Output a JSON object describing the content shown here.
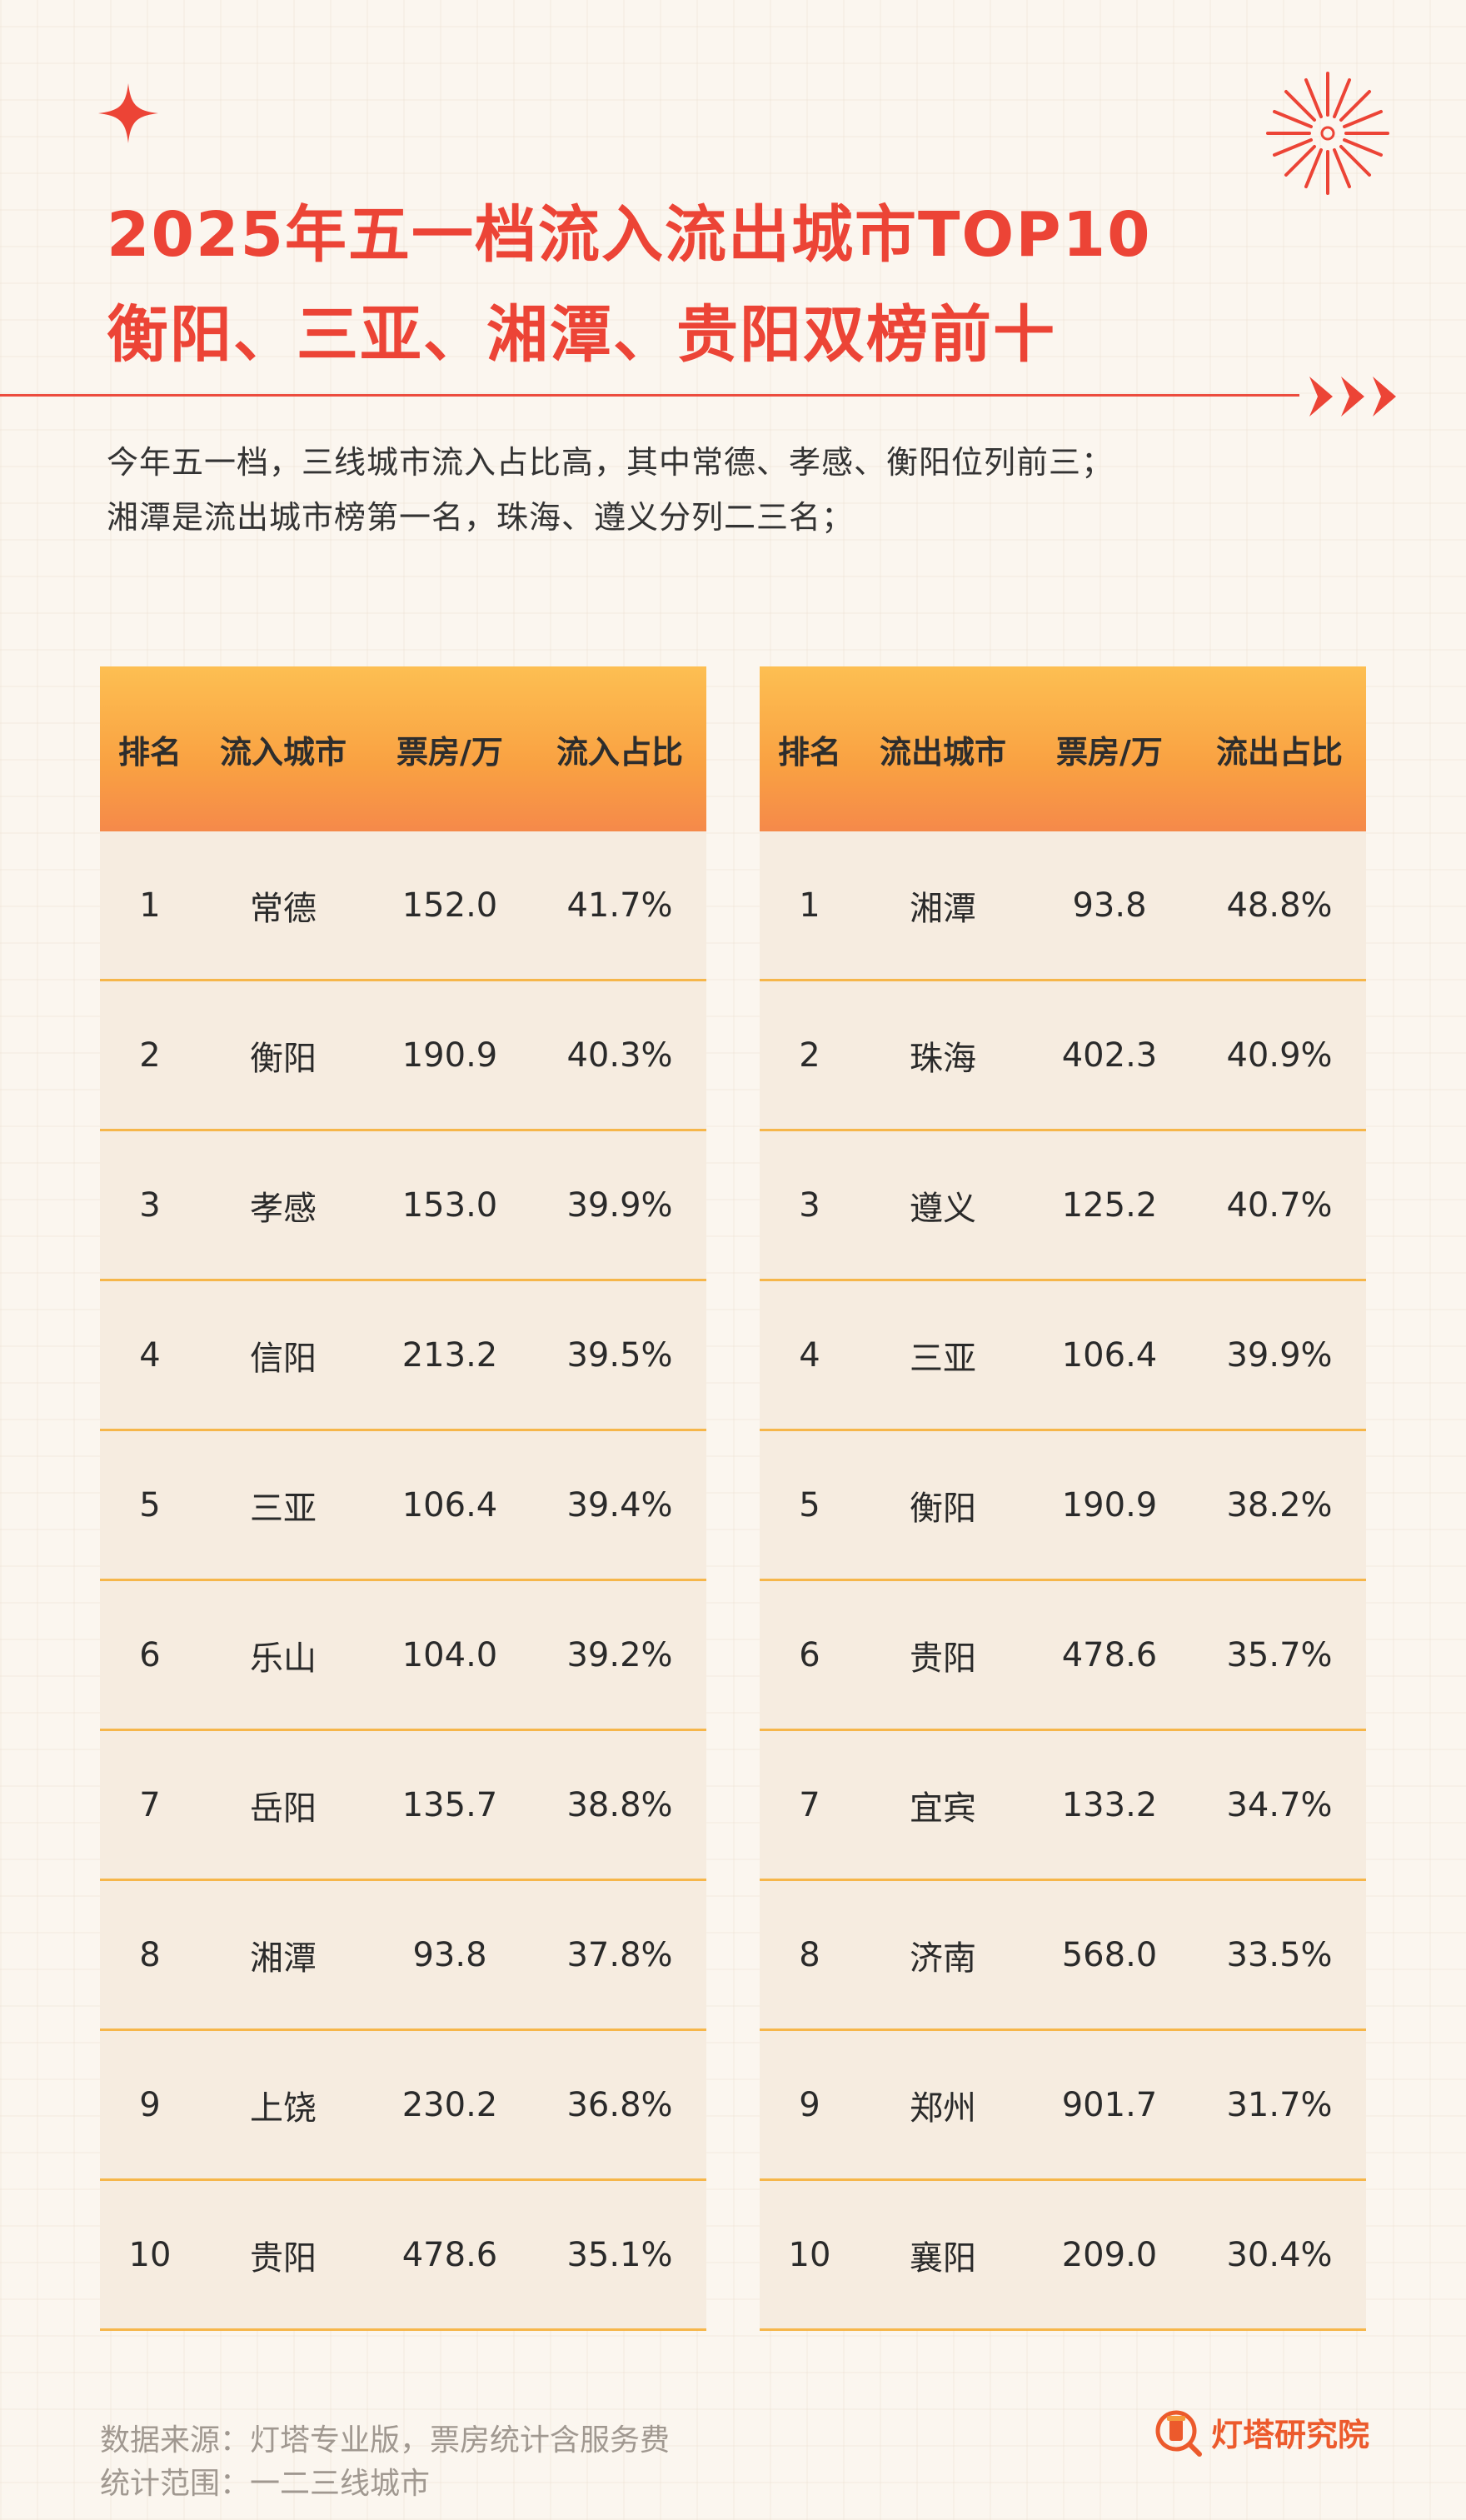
{
  "header": {
    "title_line1": "2025年五一档流入流出城市TOP10",
    "title_line2": "衡阳、三亚、湘潭、贵阳双榜前十",
    "subtitle_line1": "今年五一档，三线城市流入占比高，其中常德、孝感、衡阳位列前三；",
    "subtitle_line2": "湘潭是流出城市榜第一名，珠海、遵义分列二三名；"
  },
  "colors": {
    "accent_red": "#ec4436",
    "header_orange": "#f9a142",
    "row_bg": "#f6ece0",
    "row_divider": "#f6b64a",
    "background": "#fbf6ef"
  },
  "inflow_table": {
    "headers": [
      "排名",
      "流入城市",
      "票房/万",
      "流入占比"
    ],
    "rows": [
      [
        "1",
        "常德",
        "152.0",
        "41.7%"
      ],
      [
        "2",
        "衡阳",
        "190.9",
        "40.3%"
      ],
      [
        "3",
        "孝感",
        "153.0",
        "39.9%"
      ],
      [
        "4",
        "信阳",
        "213.2",
        "39.5%"
      ],
      [
        "5",
        "三亚",
        "106.4",
        "39.4%"
      ],
      [
        "6",
        "乐山",
        "104.0",
        "39.2%"
      ],
      [
        "7",
        "岳阳",
        "135.7",
        "38.8%"
      ],
      [
        "8",
        "湘潭",
        "93.8",
        "37.8%"
      ],
      [
        "9",
        "上饶",
        "230.2",
        "36.8%"
      ],
      [
        "10",
        "贵阳",
        "478.6",
        "35.1%"
      ]
    ]
  },
  "outflow_table": {
    "headers": [
      "排名",
      "流出城市",
      "票房/万",
      "流出占比"
    ],
    "rows": [
      [
        "1",
        "湘潭",
        "93.8",
        "48.8%"
      ],
      [
        "2",
        "珠海",
        "402.3",
        "40.9%"
      ],
      [
        "3",
        "遵义",
        "125.2",
        "40.7%"
      ],
      [
        "4",
        "三亚",
        "106.4",
        "39.9%"
      ],
      [
        "5",
        "衡阳",
        "190.9",
        "38.2%"
      ],
      [
        "6",
        "贵阳",
        "478.6",
        "35.7%"
      ],
      [
        "7",
        "宜宾",
        "133.2",
        "34.7%"
      ],
      [
        "8",
        "济南",
        "568.0",
        "33.5%"
      ],
      [
        "9",
        "郑州",
        "901.7",
        "31.7%"
      ],
      [
        "10",
        "襄阳",
        "209.0",
        "30.4%"
      ]
    ]
  },
  "footer": {
    "source": "数据来源：灯塔专业版，票房统计含服务费",
    "scope": "统计范围：一二三线城市",
    "brand": "灯塔研究院"
  },
  "icons": {
    "sparkle": "four-point-star-icon",
    "firework": "firework-icon",
    "arrows": "triple-arrow-icon",
    "brand_logo": "lighthouse-logo-icon"
  }
}
